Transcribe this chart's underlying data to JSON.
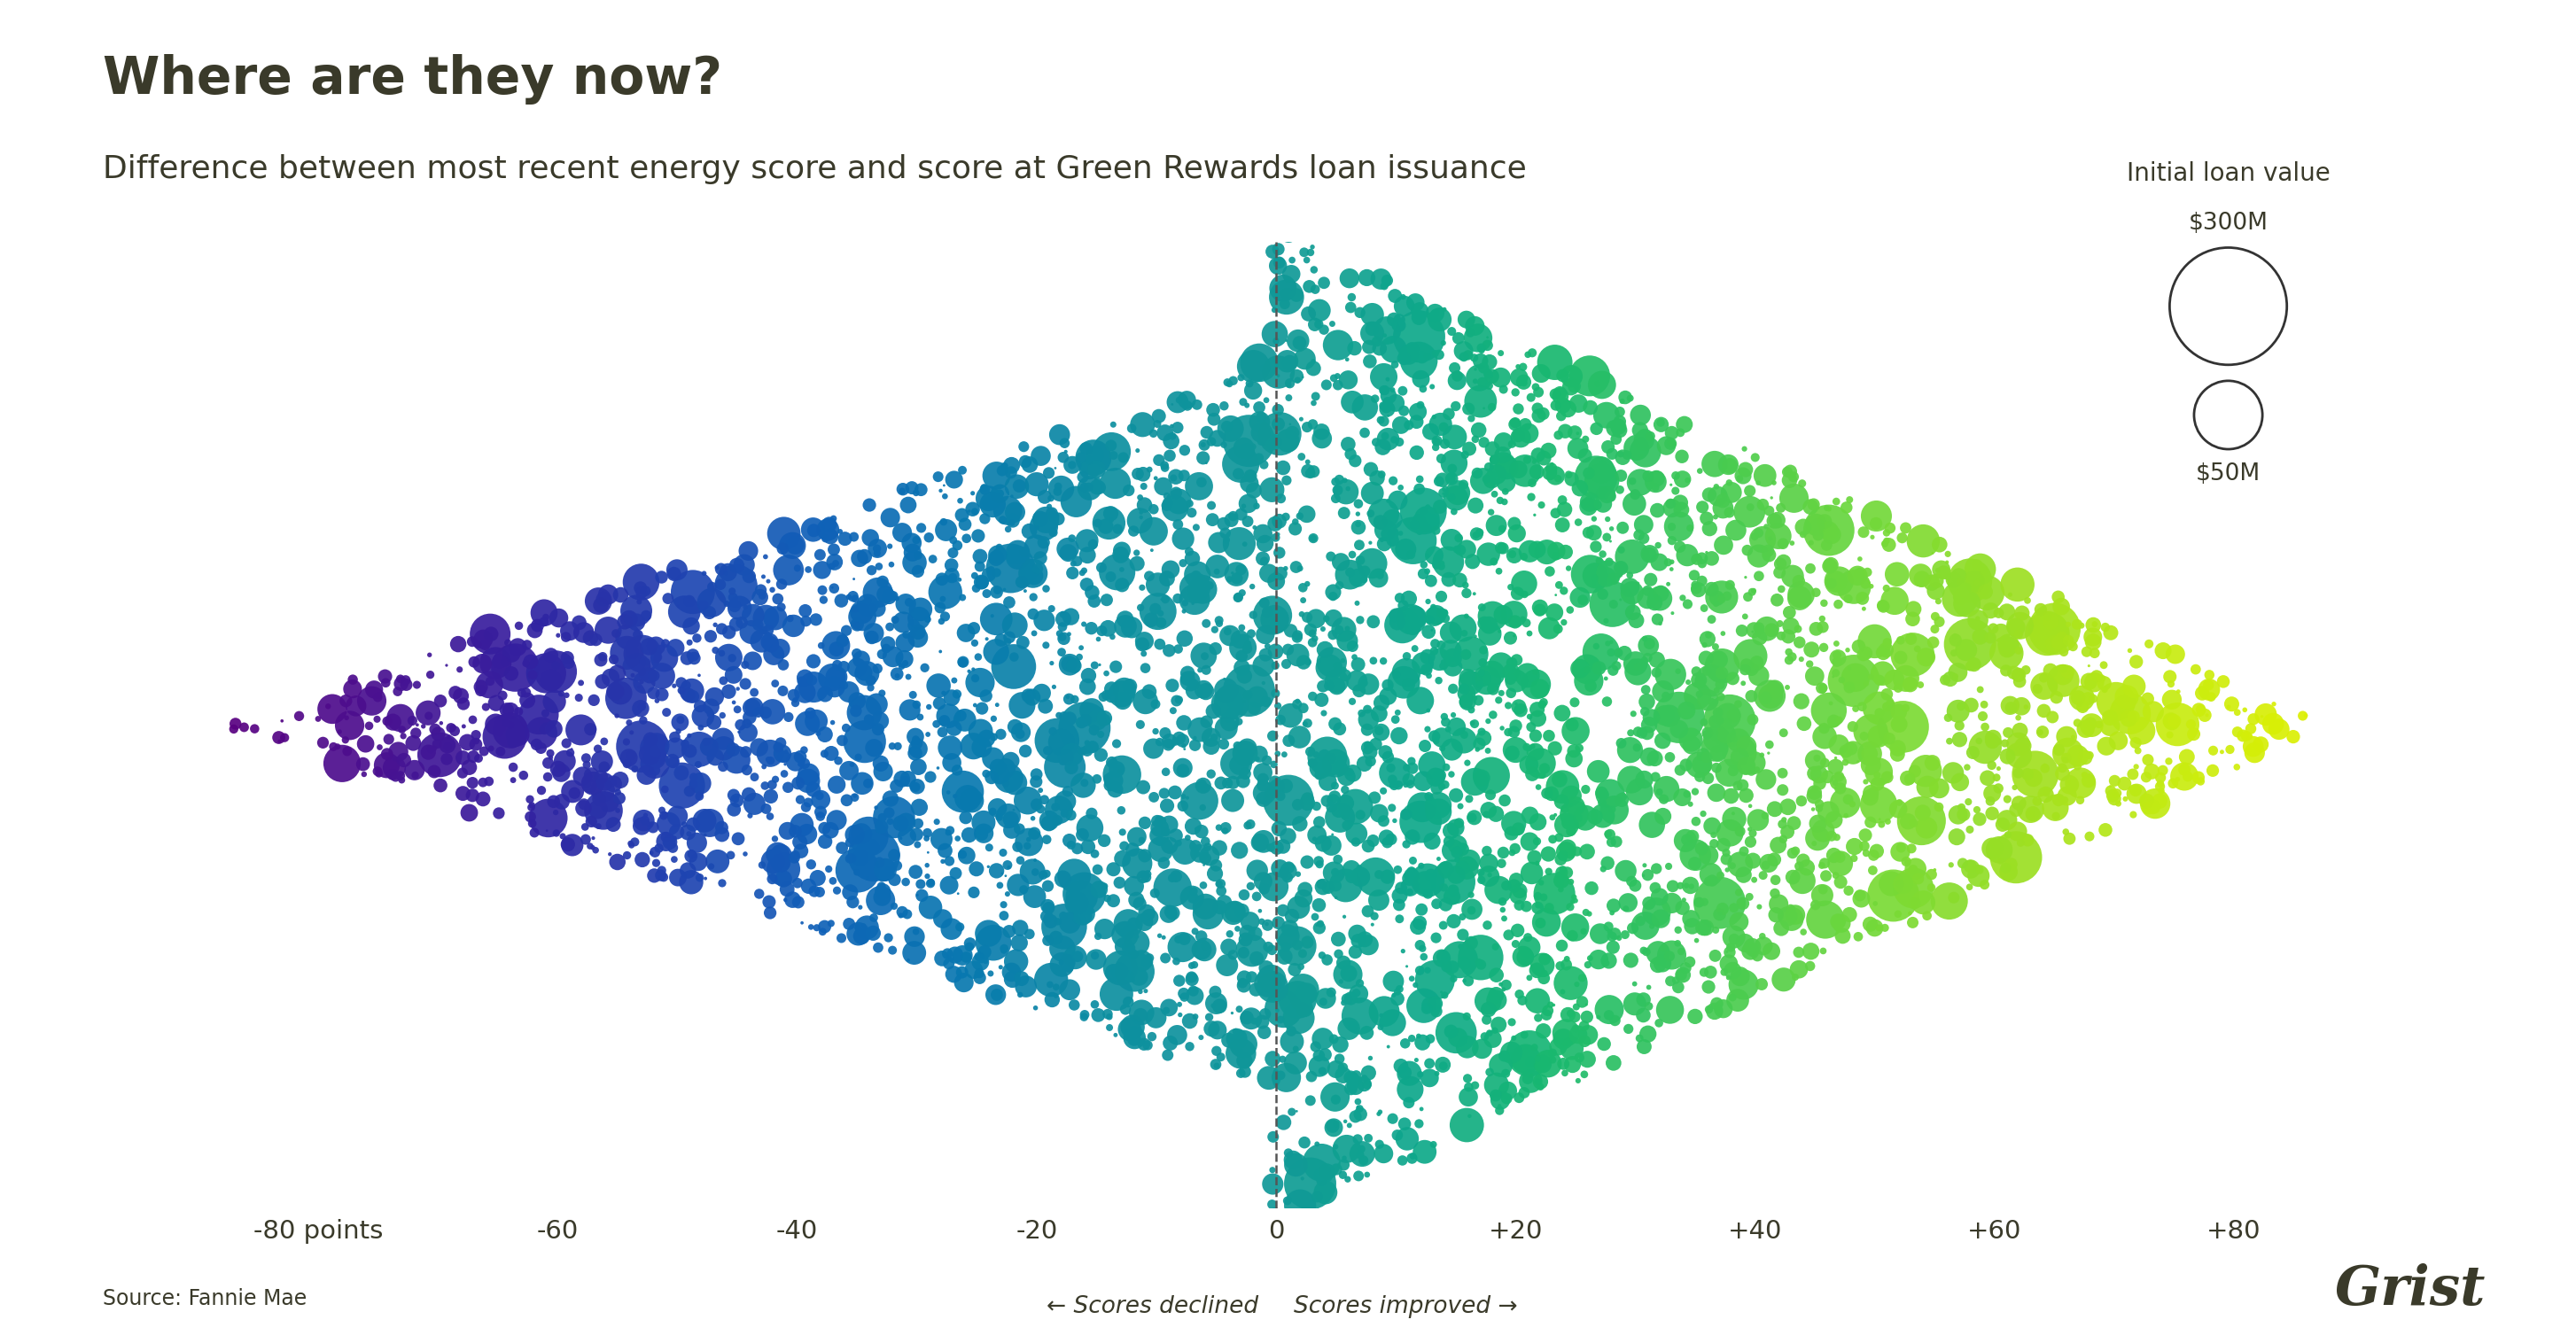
{
  "title": "Where are they now?",
  "subtitle": "Difference between most recent energy score and score at Green Rewards loan issuance",
  "source": "Source: Fannie Mae",
  "watermark": "Grist",
  "x_ticks": [
    -80,
    -60,
    -40,
    -20,
    0,
    20,
    40,
    60,
    80
  ],
  "x_tick_labels": [
    "-80 points",
    "-60",
    "-40",
    "-20",
    "0",
    "+20",
    "+40",
    "+60",
    "+80"
  ],
  "xlabel_left": "← Scores declined",
  "xlabel_right": "Scores improved →",
  "xlim": [
    -98,
    100
  ],
  "ylim": [
    -9.5,
    9.5
  ],
  "vline_x": 0,
  "legend_title": "Initial loan value",
  "legend_large_label": "$300M",
  "legend_small_label": "$50M",
  "bg_color": "#ffffff",
  "title_color": "#3a3a2a",
  "subtitle_color": "#3a3a2a",
  "axis_color": "#3a3a2a",
  "source_color": "#3a3a2a",
  "watermark_color": "#3a3a2a",
  "seed": 42,
  "n_bubbles": 4500,
  "max_loan_M": 300,
  "min_loan_M": 1,
  "colormap_colors": [
    "#5a0080",
    "#4a1090",
    "#3320a0",
    "#2040b0",
    "#1060b8",
    "#0878b0",
    "#0d8fa0",
    "#109898",
    "#0ea88a",
    "#18b870",
    "#3ec855",
    "#70d83a",
    "#a0e020",
    "#c8ec10",
    "#e0f000"
  ],
  "colormap_stops": [
    0.0,
    0.07,
    0.14,
    0.21,
    0.28,
    0.35,
    0.42,
    0.5,
    0.57,
    0.63,
    0.7,
    0.78,
    0.86,
    0.93,
    1.0
  ]
}
